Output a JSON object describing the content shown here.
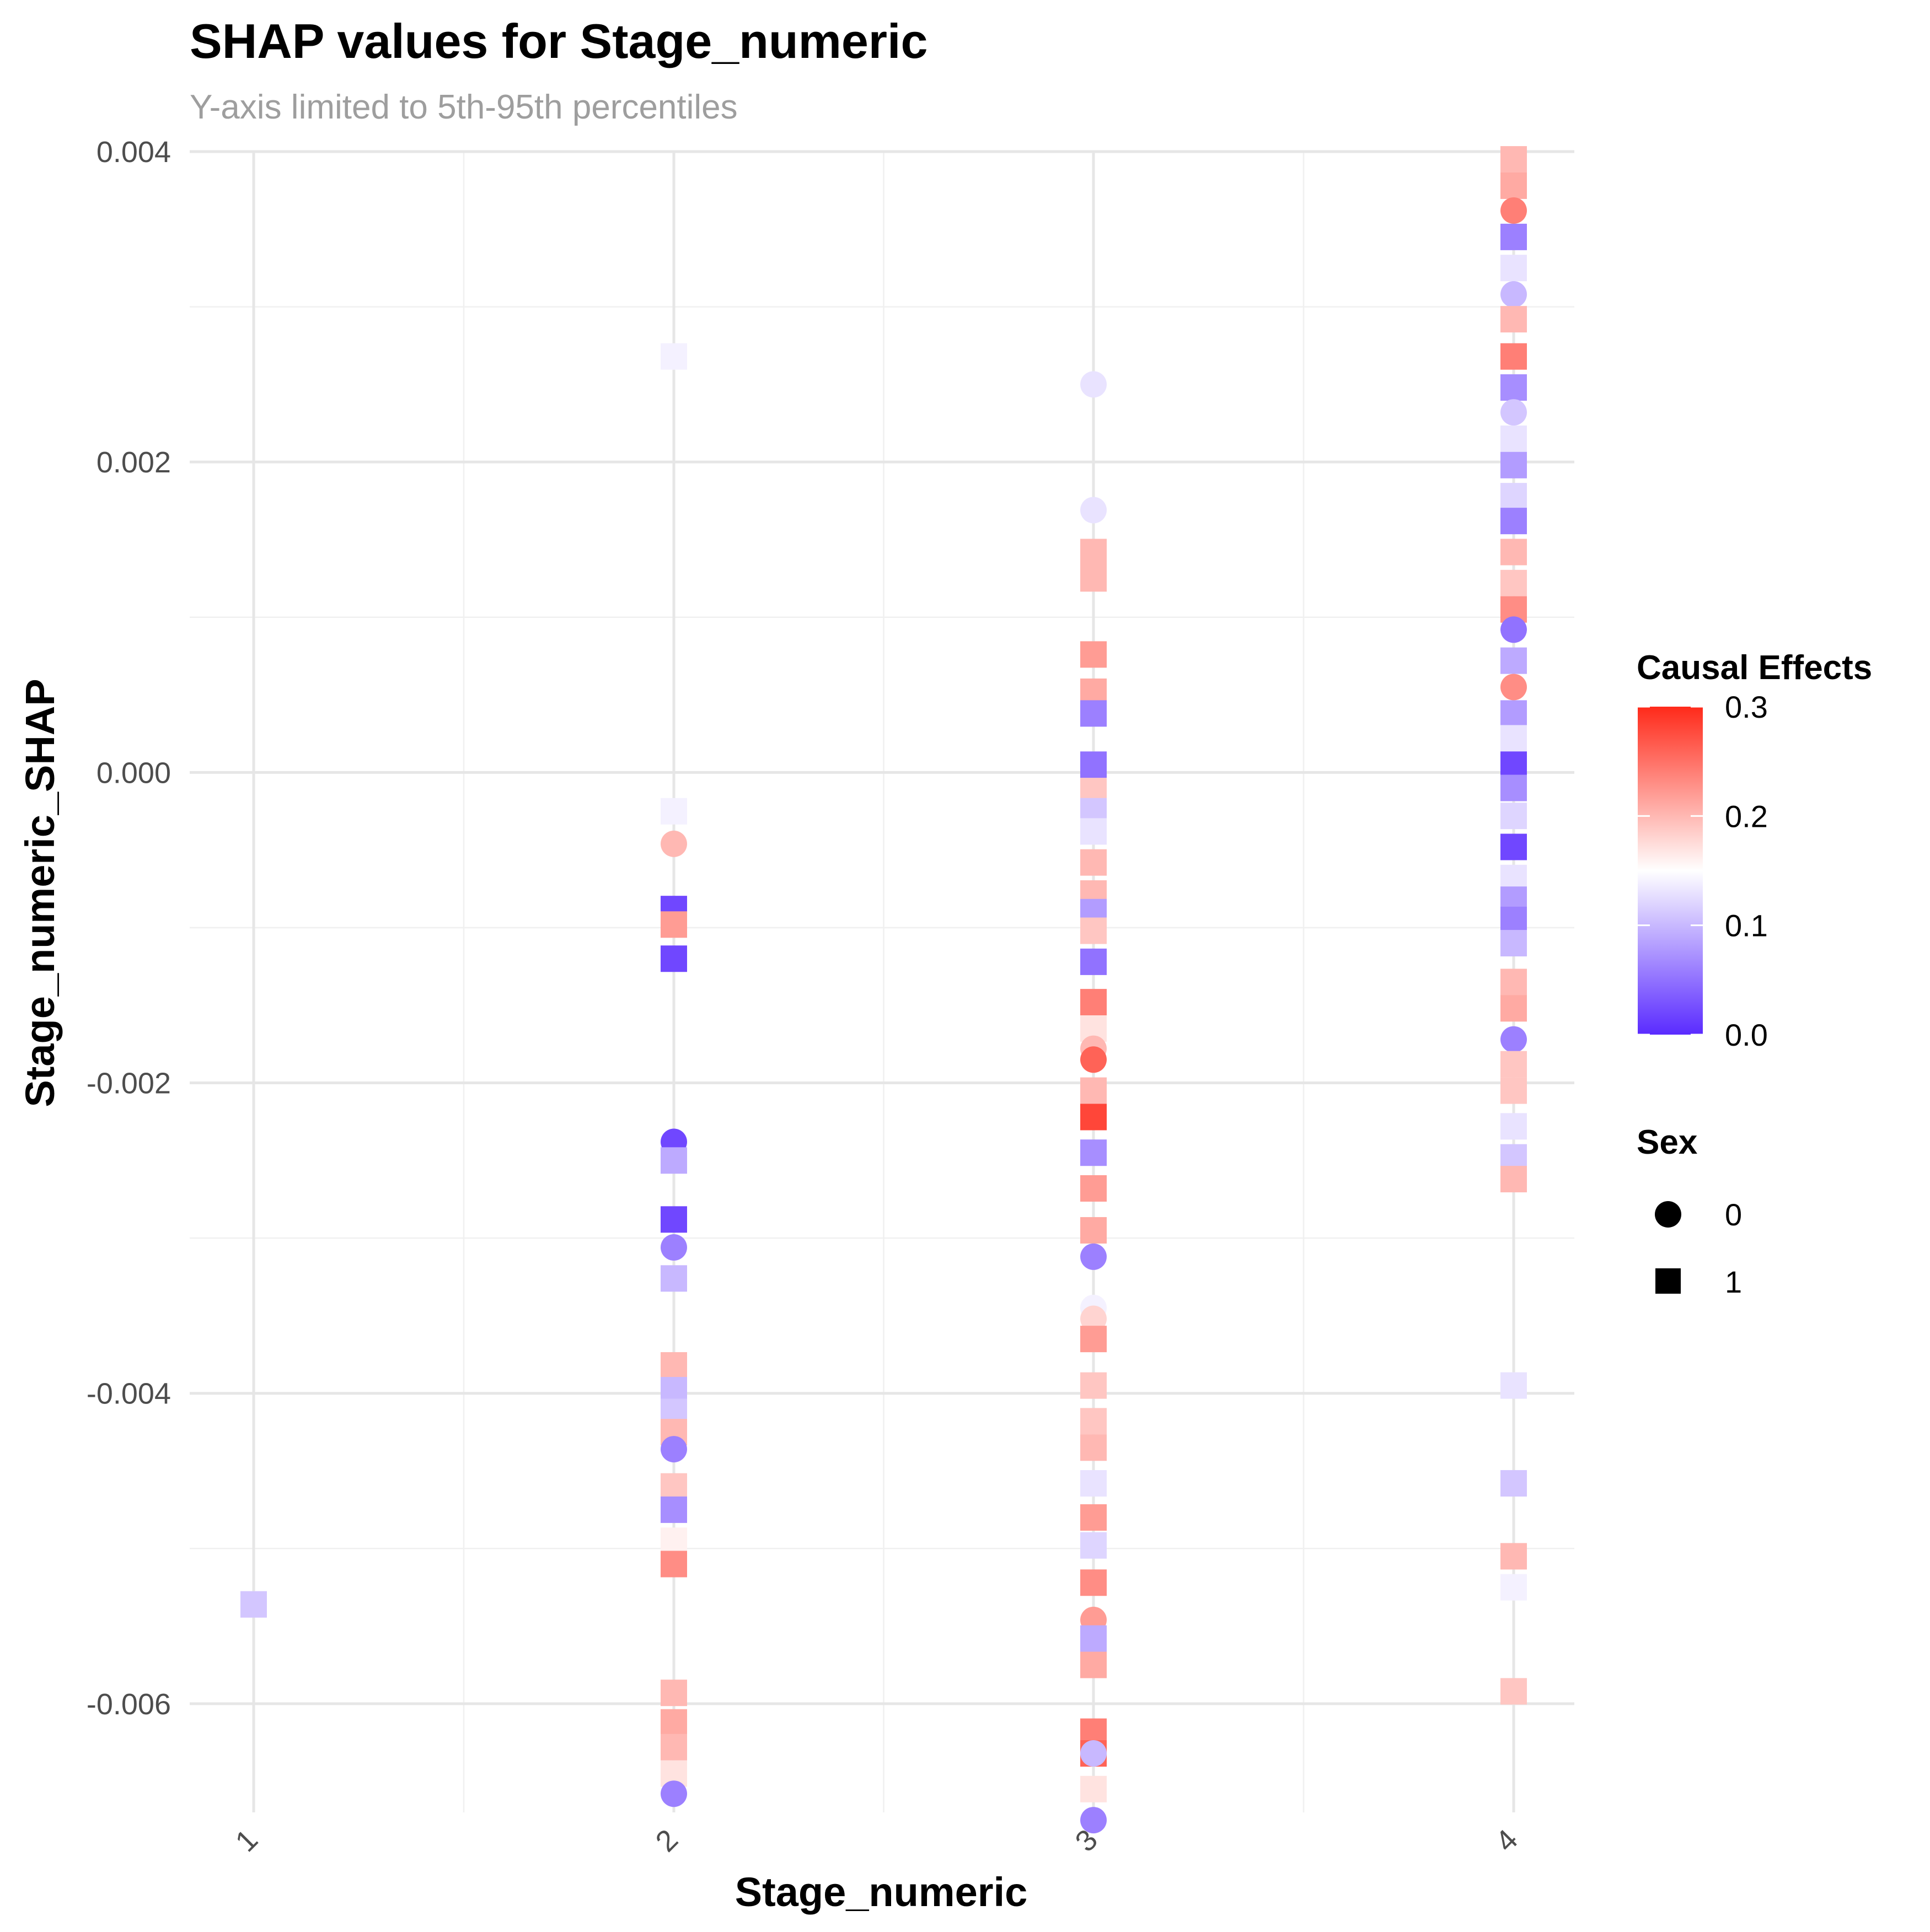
{
  "chart_data": {
    "type": "scatter",
    "title": "SHAP values for Stage_numeric",
    "subtitle": "Y-axis limited to 5th-95th percentiles",
    "xlabel": "Stage_numeric",
    "ylabel": "Stage_numeric_SHAP",
    "x_categories": [
      "1",
      "2",
      "3",
      "4"
    ],
    "ylim": [
      -0.0067,
      0.004
    ],
    "y_ticks": [
      0.004,
      0.002,
      0.0,
      -0.002,
      -0.004,
      -0.006
    ],
    "y_tick_labels": [
      "0.004",
      "0.002",
      "0.000",
      "-0.002",
      "-0.004",
      "-0.006"
    ],
    "grid": true,
    "color_scale": {
      "title": "Causal Effects",
      "low": "#5a2bff",
      "mid": "#ffffff",
      "high": "#ff2a1a",
      "mid_value": 0.15,
      "range": [
        0.0,
        0.3
      ],
      "ticks": [
        0.3,
        0.2,
        0.1,
        0.0
      ],
      "tick_labels": [
        "0.3",
        "0.2",
        "0.1",
        "0.0"
      ]
    },
    "shape_legend": {
      "title": "Sex",
      "entries": [
        {
          "label": "0",
          "shape": "circle"
        },
        {
          "label": "1",
          "shape": "square"
        }
      ]
    },
    "legend_position": "right",
    "points": [
      {
        "x": "1",
        "y": -0.00536,
        "sex": "1",
        "effect": 0.11
      },
      {
        "x": "2",
        "y": 0.00268,
        "sex": "1",
        "effect": 0.14
      },
      {
        "x": "2",
        "y": -0.00025,
        "sex": "1",
        "effect": 0.14
      },
      {
        "x": "2",
        "y": -0.00046,
        "sex": "0",
        "effect": 0.2
      },
      {
        "x": "2",
        "y": -0.00088,
        "sex": "1",
        "effect": 0.02
      },
      {
        "x": "2",
        "y": -0.00098,
        "sex": "1",
        "effect": 0.22
      },
      {
        "x": "2",
        "y": -0.0012,
        "sex": "1",
        "effect": 0.02
      },
      {
        "x": "2",
        "y": -0.00238,
        "sex": "0",
        "effect": 0.02
      },
      {
        "x": "2",
        "y": -0.0025,
        "sex": "1",
        "effect": 0.09
      },
      {
        "x": "2",
        "y": -0.00288,
        "sex": "1",
        "effect": 0.02
      },
      {
        "x": "2",
        "y": -0.00306,
        "sex": "0",
        "effect": 0.06
      },
      {
        "x": "2",
        "y": -0.00326,
        "sex": "1",
        "effect": 0.1
      },
      {
        "x": "2",
        "y": -0.00382,
        "sex": "1",
        "effect": 0.2
      },
      {
        "x": "2",
        "y": -0.00398,
        "sex": "1",
        "effect": 0.1
      },
      {
        "x": "2",
        "y": -0.00412,
        "sex": "1",
        "effect": 0.11
      },
      {
        "x": "2",
        "y": -0.00425,
        "sex": "1",
        "effect": 0.2
      },
      {
        "x": "2",
        "y": -0.00436,
        "sex": "0",
        "effect": 0.06
      },
      {
        "x": "2",
        "y": -0.0046,
        "sex": "1",
        "effect": 0.19
      },
      {
        "x": "2",
        "y": -0.00475,
        "sex": "1",
        "effect": 0.07
      },
      {
        "x": "2",
        "y": -0.00495,
        "sex": "1",
        "effect": 0.16
      },
      {
        "x": "2",
        "y": -0.0051,
        "sex": "1",
        "effect": 0.23
      },
      {
        "x": "2",
        "y": -0.00593,
        "sex": "1",
        "effect": 0.2
      },
      {
        "x": "2",
        "y": -0.00612,
        "sex": "1",
        "effect": 0.21
      },
      {
        "x": "2",
        "y": -0.00628,
        "sex": "1",
        "effect": 0.2
      },
      {
        "x": "2",
        "y": -0.00645,
        "sex": "1",
        "effect": 0.17
      },
      {
        "x": "2",
        "y": -0.00658,
        "sex": "0",
        "effect": 0.06
      },
      {
        "x": "3",
        "y": 0.0025,
        "sex": "0",
        "effect": 0.13
      },
      {
        "x": "3",
        "y": 0.00169,
        "sex": "0",
        "effect": 0.13
      },
      {
        "x": "3",
        "y": 0.00142,
        "sex": "1",
        "effect": 0.2
      },
      {
        "x": "3",
        "y": 0.00125,
        "sex": "1",
        "effect": 0.2
      },
      {
        "x": "3",
        "y": 0.00076,
        "sex": "1",
        "effect": 0.22
      },
      {
        "x": "3",
        "y": 0.00052,
        "sex": "1",
        "effect": 0.21
      },
      {
        "x": "3",
        "y": 0.00038,
        "sex": "1",
        "effect": 0.06
      },
      {
        "x": "3",
        "y": 5e-05,
        "sex": "1",
        "effect": 0.05
      },
      {
        "x": "3",
        "y": -0.00012,
        "sex": "1",
        "effect": 0.19
      },
      {
        "x": "3",
        "y": -0.00025,
        "sex": "1",
        "effect": 0.11
      },
      {
        "x": "3",
        "y": -0.00038,
        "sex": "1",
        "effect": 0.13
      },
      {
        "x": "3",
        "y": -0.00058,
        "sex": "1",
        "effect": 0.2
      },
      {
        "x": "3",
        "y": -0.00078,
        "sex": "1",
        "effect": 0.2
      },
      {
        "x": "3",
        "y": -0.0009,
        "sex": "1",
        "effect": 0.08
      },
      {
        "x": "3",
        "y": -0.00102,
        "sex": "1",
        "effect": 0.19
      },
      {
        "x": "3",
        "y": -0.00122,
        "sex": "1",
        "effect": 0.05
      },
      {
        "x": "3",
        "y": -0.00148,
        "sex": "1",
        "effect": 0.24
      },
      {
        "x": "3",
        "y": -0.00165,
        "sex": "1",
        "effect": 0.17
      },
      {
        "x": "3",
        "y": -0.00178,
        "sex": "0",
        "effect": 0.2
      },
      {
        "x": "3",
        "y": -0.00185,
        "sex": "0",
        "effect": 0.26
      },
      {
        "x": "3",
        "y": -0.00205,
        "sex": "1",
        "effect": 0.2
      },
      {
        "x": "3",
        "y": -0.00222,
        "sex": "1",
        "effect": 0.28
      },
      {
        "x": "3",
        "y": -0.00245,
        "sex": "1",
        "effect": 0.07
      },
      {
        "x": "3",
        "y": -0.00268,
        "sex": "1",
        "effect": 0.22
      },
      {
        "x": "3",
        "y": -0.00295,
        "sex": "1",
        "effect": 0.21
      },
      {
        "x": "3",
        "y": -0.00312,
        "sex": "0",
        "effect": 0.06
      },
      {
        "x": "3",
        "y": -0.00345,
        "sex": "0",
        "effect": 0.14
      },
      {
        "x": "3",
        "y": -0.00352,
        "sex": "0",
        "effect": 0.18
      },
      {
        "x": "3",
        "y": -0.00365,
        "sex": "1",
        "effect": 0.22
      },
      {
        "x": "3",
        "y": -0.00395,
        "sex": "1",
        "effect": 0.19
      },
      {
        "x": "3",
        "y": -0.00418,
        "sex": "1",
        "effect": 0.19
      },
      {
        "x": "3",
        "y": -0.00435,
        "sex": "1",
        "effect": 0.2
      },
      {
        "x": "3",
        "y": -0.00458,
        "sex": "1",
        "effect": 0.13
      },
      {
        "x": "3",
        "y": -0.0048,
        "sex": "1",
        "effect": 0.22
      },
      {
        "x": "3",
        "y": -0.00498,
        "sex": "1",
        "effect": 0.12
      },
      {
        "x": "3",
        "y": -0.00522,
        "sex": "1",
        "effect": 0.23
      },
      {
        "x": "3",
        "y": -0.00546,
        "sex": "0",
        "effect": 0.22
      },
      {
        "x": "3",
        "y": -0.00558,
        "sex": "1",
        "effect": 0.09
      },
      {
        "x": "3",
        "y": -0.00575,
        "sex": "1",
        "effect": 0.21
      },
      {
        "x": "3",
        "y": -0.00618,
        "sex": "1",
        "effect": 0.24
      },
      {
        "x": "3",
        "y": -0.00632,
        "sex": "1",
        "effect": 0.26
      },
      {
        "x": "3",
        "y": -0.00632,
        "sex": "0",
        "effect": 0.1
      },
      {
        "x": "3",
        "y": -0.00655,
        "sex": "1",
        "effect": 0.17
      },
      {
        "x": "3",
        "y": -0.00675,
        "sex": "0",
        "effect": 0.06
      },
      {
        "x": "4",
        "y": 0.00395,
        "sex": "1",
        "effect": 0.2
      },
      {
        "x": "4",
        "y": 0.00378,
        "sex": "1",
        "effect": 0.21
      },
      {
        "x": "4",
        "y": 0.00362,
        "sex": "0",
        "effect": 0.24
      },
      {
        "x": "4",
        "y": 0.00345,
        "sex": "1",
        "effect": 0.06
      },
      {
        "x": "4",
        "y": 0.00325,
        "sex": "1",
        "effect": 0.13
      },
      {
        "x": "4",
        "y": 0.00308,
        "sex": "0",
        "effect": 0.1
      },
      {
        "x": "4",
        "y": 0.00292,
        "sex": "1",
        "effect": 0.2
      },
      {
        "x": "4",
        "y": 0.00268,
        "sex": "1",
        "effect": 0.24
      },
      {
        "x": "4",
        "y": 0.00248,
        "sex": "1",
        "effect": 0.07
      },
      {
        "x": "4",
        "y": 0.00232,
        "sex": "0",
        "effect": 0.11
      },
      {
        "x": "4",
        "y": 0.00215,
        "sex": "1",
        "effect": 0.13
      },
      {
        "x": "4",
        "y": 0.00198,
        "sex": "1",
        "effect": 0.08
      },
      {
        "x": "4",
        "y": 0.00178,
        "sex": "1",
        "effect": 0.12
      },
      {
        "x": "4",
        "y": 0.00162,
        "sex": "1",
        "effect": 0.06
      },
      {
        "x": "4",
        "y": 0.00142,
        "sex": "1",
        "effect": 0.2
      },
      {
        "x": "4",
        "y": 0.00122,
        "sex": "1",
        "effect": 0.19
      },
      {
        "x": "4",
        "y": 0.00105,
        "sex": "1",
        "effect": 0.23
      },
      {
        "x": "4",
        "y": 0.00092,
        "sex": "0",
        "effect": 0.05
      },
      {
        "x": "4",
        "y": 0.00072,
        "sex": "1",
        "effect": 0.09
      },
      {
        "x": "4",
        "y": 0.00055,
        "sex": "0",
        "effect": 0.23
      },
      {
        "x": "4",
        "y": 0.00038,
        "sex": "1",
        "effect": 0.08
      },
      {
        "x": "4",
        "y": 0.00022,
        "sex": "1",
        "effect": 0.13
      },
      {
        "x": "4",
        "y": 5e-05,
        "sex": "1",
        "effect": 0.02
      },
      {
        "x": "4",
        "y": -0.0001,
        "sex": "1",
        "effect": 0.07
      },
      {
        "x": "4",
        "y": -0.00028,
        "sex": "1",
        "effect": 0.12
      },
      {
        "x": "4",
        "y": -0.00048,
        "sex": "1",
        "effect": 0.02
      },
      {
        "x": "4",
        "y": -0.00068,
        "sex": "1",
        "effect": 0.13
      },
      {
        "x": "4",
        "y": -0.00082,
        "sex": "1",
        "effect": 0.08
      },
      {
        "x": "4",
        "y": -0.00095,
        "sex": "1",
        "effect": 0.06
      },
      {
        "x": "4",
        "y": -0.0011,
        "sex": "1",
        "effect": 0.1
      },
      {
        "x": "4",
        "y": -0.00135,
        "sex": "1",
        "effect": 0.2
      },
      {
        "x": "4",
        "y": -0.00152,
        "sex": "1",
        "effect": 0.21
      },
      {
        "x": "4",
        "y": -0.00172,
        "sex": "0",
        "effect": 0.06
      },
      {
        "x": "4",
        "y": -0.00188,
        "sex": "1",
        "effect": 0.19
      },
      {
        "x": "4",
        "y": -0.00205,
        "sex": "1",
        "effect": 0.19
      },
      {
        "x": "4",
        "y": -0.00228,
        "sex": "1",
        "effect": 0.13
      },
      {
        "x": "4",
        "y": -0.00248,
        "sex": "1",
        "effect": 0.11
      },
      {
        "x": "4",
        "y": -0.00262,
        "sex": "1",
        "effect": 0.2
      },
      {
        "x": "4",
        "y": -0.00395,
        "sex": "1",
        "effect": 0.13
      },
      {
        "x": "4",
        "y": -0.00458,
        "sex": "1",
        "effect": 0.11
      },
      {
        "x": "4",
        "y": -0.00505,
        "sex": "1",
        "effect": 0.2
      },
      {
        "x": "4",
        "y": -0.00525,
        "sex": "1",
        "effect": 0.14
      },
      {
        "x": "4",
        "y": -0.00592,
        "sex": "1",
        "effect": 0.19
      }
    ]
  }
}
